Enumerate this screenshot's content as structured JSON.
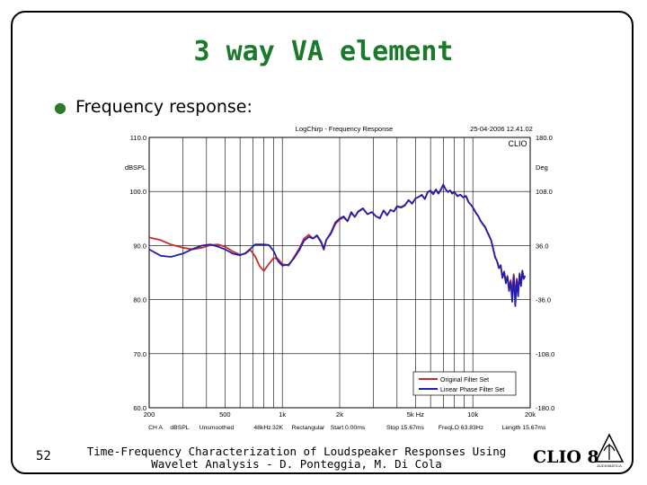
{
  "slide": {
    "title": "3 way VA element",
    "bullet": "Frequency response:",
    "page_number": "52",
    "footer_line1": "Time-Frequency Characterization of Loudspeaker Responses Using",
    "footer_line2": "Wavelet Analysis - D. Ponteggia, M. Di Cola",
    "logo": "CLIO 8",
    "logo_small": "AUDIOMATICA"
  },
  "chart_data": {
    "type": "line",
    "title": "LogChirp - Frequency Response",
    "timestamp": "25-04-2006 12.41.02",
    "watermark": "CLIO",
    "ylabel_left": "dBSPL",
    "ylabel_right": "Deg",
    "yticks_left": [
      "110.0",
      "100.0",
      "90.0",
      "80.0",
      "70.0",
      "60.0"
    ],
    "yticks_right": [
      "180.0",
      "108.0",
      "36.0",
      "-36.0",
      "-108.0",
      "-180.0"
    ],
    "ylim": [
      60,
      110
    ],
    "xlim": [
      200,
      20000
    ],
    "xscale": "log",
    "xticks": [
      "200",
      "500",
      "1k",
      "2k",
      "5k Hz",
      "10k",
      "20k"
    ],
    "grid": true,
    "legend_position": "bottom-right",
    "footer": [
      "CH A",
      "dBSPL",
      "Unsmoothed",
      "48kHz",
      "32K",
      "Rectangular",
      "Start 0.00ms",
      "Stop 15.67ms",
      "FreqLO 63.83Hz",
      "Length 15.67ms"
    ],
    "series": [
      {
        "name": "Original Filter Set",
        "color": "#cc2a2a",
        "points": [
          [
            200,
            91.5
          ],
          [
            230,
            91
          ],
          [
            260,
            90.2
          ],
          [
            300,
            89.6
          ],
          [
            340,
            89.3
          ],
          [
            380,
            89.6
          ],
          [
            420,
            90.1
          ],
          [
            460,
            90.2
          ],
          [
            500,
            89.8
          ],
          [
            550,
            88.9
          ],
          [
            600,
            88.3
          ],
          [
            640,
            88.5
          ],
          [
            680,
            89.2
          ],
          [
            720,
            88
          ],
          [
            760,
            86.2
          ],
          [
            800,
            85.3
          ],
          [
            850,
            86.6
          ],
          [
            900,
            87.7
          ],
          [
            950,
            87.5
          ],
          [
            1000,
            86.6
          ],
          [
            1080,
            86.3
          ],
          [
            1150,
            87.8
          ],
          [
            1230,
            89.5
          ],
          [
            1300,
            91.3
          ],
          [
            1380,
            92
          ],
          [
            1450,
            91.3
          ],
          [
            1520,
            91.8
          ],
          [
            1600,
            90.5
          ],
          [
            1650,
            89.2
          ],
          [
            1700,
            91
          ],
          [
            1800,
            92.2
          ],
          [
            1900,
            94
          ],
          [
            2000,
            94.8
          ],
          [
            2100,
            95.2
          ],
          [
            2200,
            94.5
          ],
          [
            2300,
            96
          ],
          [
            2400,
            95.3
          ],
          [
            2500,
            96.2
          ],
          [
            2650,
            96.8
          ],
          [
            2800,
            95.8
          ],
          [
            2950,
            96.2
          ],
          [
            3100,
            95.4
          ],
          [
            3250,
            95
          ],
          [
            3400,
            96.5
          ],
          [
            3550,
            95.6
          ],
          [
            3700,
            96.6
          ],
          [
            3850,
            96.3
          ],
          [
            4000,
            97.2
          ],
          [
            4200,
            97
          ],
          [
            4400,
            97.4
          ],
          [
            4600,
            98.4
          ],
          [
            4800,
            97.7
          ],
          [
            5000,
            98.7
          ],
          [
            5200,
            99
          ],
          [
            5400,
            99.3
          ],
          [
            5600,
            98.6
          ],
          [
            5800,
            99.9
          ],
          [
            6000,
            100
          ],
          [
            6200,
            99.5
          ],
          [
            6400,
            100.3
          ],
          [
            6600,
            99.6
          ],
          [
            6800,
            100.3
          ],
          [
            7000,
            101.2
          ],
          [
            7200,
            100.4
          ],
          [
            7400,
            99.9
          ],
          [
            7600,
            100.2
          ],
          [
            7800,
            99.6
          ],
          [
            8000,
            99.9
          ],
          [
            8300,
            99.1
          ],
          [
            8600,
            99.4
          ],
          [
            8900,
            98.9
          ],
          [
            9200,
            99.1
          ],
          [
            9500,
            98
          ],
          [
            9800,
            97.5
          ],
          [
            10100,
            96.8
          ],
          [
            10400,
            96
          ],
          [
            10700,
            95.4
          ],
          [
            11000,
            94.5
          ],
          [
            11300,
            94
          ],
          [
            11600,
            93.5
          ],
          [
            11900,
            92.6
          ],
          [
            12200,
            91.8
          ],
          [
            12500,
            90.9
          ],
          [
            12800,
            89.4
          ],
          [
            13100,
            87.9
          ],
          [
            13400,
            87.2
          ],
          [
            13700,
            85.9
          ],
          [
            14000,
            86.4
          ],
          [
            14300,
            84.3
          ],
          [
            14600,
            85.2
          ],
          [
            14900,
            83.4
          ],
          [
            15200,
            84.4
          ],
          [
            15500,
            82.3
          ],
          [
            15800,
            83.6
          ],
          [
            16100,
            81.2
          ],
          [
            16400,
            84.7
          ],
          [
            16700,
            80.6
          ],
          [
            17000,
            83.9
          ],
          [
            17300,
            81.5
          ],
          [
            17600,
            84.9
          ],
          [
            17900,
            82.8
          ],
          [
            18200,
            85.4
          ],
          [
            18500,
            83.9
          ],
          [
            18800,
            84.4
          ]
        ]
      },
      {
        "name": "Linear Phase Filter Set",
        "color": "#2020b0",
        "points": [
          [
            200,
            89.3
          ],
          [
            230,
            88.1
          ],
          [
            260,
            87.9
          ],
          [
            300,
            88.5
          ],
          [
            340,
            89.4
          ],
          [
            380,
            90
          ],
          [
            420,
            90.2
          ],
          [
            460,
            89.8
          ],
          [
            500,
            89.3
          ],
          [
            550,
            88.5
          ],
          [
            600,
            88.2
          ],
          [
            640,
            88.6
          ],
          [
            680,
            89.4
          ],
          [
            720,
            90.2
          ],
          [
            760,
            90.2
          ],
          [
            800,
            90.2
          ],
          [
            850,
            90.1
          ],
          [
            900,
            89
          ],
          [
            950,
            87.1
          ],
          [
            1000,
            86.3
          ],
          [
            1080,
            86.5
          ],
          [
            1150,
            87.6
          ],
          [
            1230,
            89.2
          ],
          [
            1300,
            90.9
          ],
          [
            1380,
            91.6
          ],
          [
            1450,
            91.3
          ],
          [
            1520,
            91.9
          ],
          [
            1600,
            90.7
          ],
          [
            1650,
            89.4
          ],
          [
            1700,
            91
          ],
          [
            1800,
            92.4
          ],
          [
            1900,
            94.3
          ],
          [
            2000,
            95
          ],
          [
            2100,
            95.4
          ],
          [
            2200,
            94.5
          ],
          [
            2300,
            96.2
          ],
          [
            2400,
            95.3
          ],
          [
            2500,
            96.3
          ],
          [
            2650,
            96.9
          ],
          [
            2800,
            95.8
          ],
          [
            2950,
            96.2
          ],
          [
            3100,
            95.4
          ],
          [
            3250,
            95.1
          ],
          [
            3400,
            96.5
          ],
          [
            3550,
            95.6
          ],
          [
            3700,
            96.6
          ],
          [
            3850,
            96.3
          ],
          [
            4000,
            97.3
          ],
          [
            4200,
            97.1
          ],
          [
            4400,
            97.5
          ],
          [
            4600,
            98.4
          ],
          [
            4800,
            97.8
          ],
          [
            5000,
            98.7
          ],
          [
            5200,
            99
          ],
          [
            5400,
            99.4
          ],
          [
            5600,
            98.6
          ],
          [
            5800,
            99.9
          ],
          [
            6000,
            100.2
          ],
          [
            6200,
            99.5
          ],
          [
            6400,
            100.4
          ],
          [
            6600,
            99.6
          ],
          [
            6800,
            100.4
          ],
          [
            7000,
            101.3
          ],
          [
            7200,
            100.4
          ],
          [
            7400,
            99.9
          ],
          [
            7600,
            100.2
          ],
          [
            7800,
            99.6
          ],
          [
            8000,
            99.9
          ],
          [
            8300,
            99.2
          ],
          [
            8600,
            99.4
          ],
          [
            8900,
            98.9
          ],
          [
            9200,
            99.2
          ],
          [
            9500,
            98
          ],
          [
            9800,
            97.5
          ],
          [
            10100,
            96.8
          ],
          [
            10400,
            96
          ],
          [
            10700,
            95.4
          ],
          [
            11000,
            94.5
          ],
          [
            11300,
            93.9
          ],
          [
            11600,
            93.4
          ],
          [
            11900,
            92.5
          ],
          [
            12200,
            91.7
          ],
          [
            12500,
            90.9
          ],
          [
            12800,
            89.3
          ],
          [
            13100,
            87.8
          ],
          [
            13400,
            87.1
          ],
          [
            13700,
            85.8
          ],
          [
            14000,
            86.3
          ],
          [
            14300,
            84
          ],
          [
            14600,
            85.1
          ],
          [
            14900,
            83
          ],
          [
            15200,
            84.2
          ],
          [
            15500,
            81.6
          ],
          [
            15800,
            83.3
          ],
          [
            16100,
            79.6
          ],
          [
            16400,
            84.4
          ],
          [
            16700,
            78.8
          ],
          [
            17000,
            83.6
          ],
          [
            17300,
            80.6
          ],
          [
            17600,
            84.7
          ],
          [
            17900,
            82.5
          ],
          [
            18200,
            85.3
          ],
          [
            18500,
            83.8
          ],
          [
            18800,
            84.4
          ]
        ]
      }
    ]
  }
}
